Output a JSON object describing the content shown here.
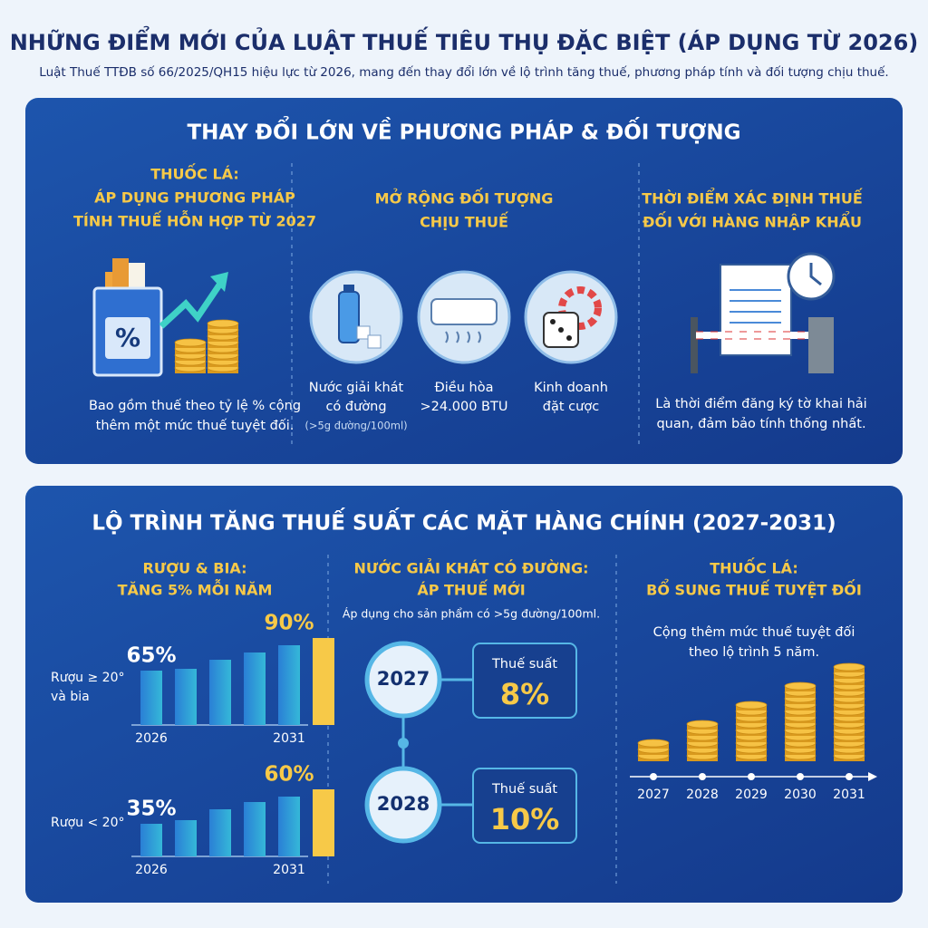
{
  "header": {
    "title": "NHỮNG ĐIỂM MỚI CỦA LUẬT THUẾ TIÊU THỤ ĐẶC BIỆT (ÁP DỤNG TỪ 2026)",
    "subtitle": "Luật Thuế TTĐB số 66/2025/QH15 hiệu lực từ 2026, mang đến thay đổi lớn về lộ trình tăng thuế, phương pháp tính và đối tượng chịu thuế."
  },
  "section1": {
    "title": "THAY ĐỔI LỚN VỀ PHƯƠNG PHÁP & ĐỐI TƯỢNG",
    "columns": [
      {
        "heading": [
          "THUỐC LÁ:",
          "ÁP DỤNG PHƯƠNG PHÁP",
          "TÍNH THUẾ HỖN HỢP TỪ 2027"
        ],
        "description": [
          "Bao gồm thuế theo tỷ lệ % cộng",
          "thêm một mức thuế tuyệt đối."
        ]
      },
      {
        "heading": [
          "MỞ RỘNG ĐỐI TƯỢNG",
          "CHỊU THUẾ"
        ],
        "items": [
          {
            "label": [
              "Nước giải khát",
              "có đường"
            ],
            "note": "(>5g đường/100ml)"
          },
          {
            "label": [
              "Điều hòa",
              ">24.000 BTU"
            ]
          },
          {
            "label": [
              "Kinh doanh",
              "đặt cược"
            ]
          }
        ]
      },
      {
        "heading": [
          "THỜI ĐIỂM XÁC ĐỊNH THUẾ",
          "ĐỐI VỚI HÀNG NHẬP KHẨU"
        ],
        "description": [
          "Là thời điểm đăng ký tờ khai hải",
          "quan, đảm bảo tính thống nhất."
        ]
      }
    ]
  },
  "section2": {
    "title": "LỘ TRÌNH TĂNG THUẾ SUẤT CÁC MẶT HÀNG CHÍNH (2027-2031)",
    "alcohol": {
      "heading": [
        "RƯỢU & BIA:",
        "TĂNG 5% MỖI NĂM"
      ],
      "rows": [
        {
          "label": [
            "Rượu ≥ 20°",
            "và bia"
          ],
          "start": "65%",
          "end": "90%",
          "start_year": "2026",
          "end_year": "2031"
        },
        {
          "label": [
            "Rượu < 20°"
          ],
          "start": "35%",
          "end": "60%",
          "start_year": "2026",
          "end_year": "2031"
        }
      ]
    },
    "sugary": {
      "heading": [
        "NƯỚC GIẢI KHÁT CÓ ĐƯỜNG:",
        "ÁP THUẾ MỚI"
      ],
      "note": "Áp dụng cho sản phẩm có >5g đường/100ml.",
      "steps": [
        {
          "year": "2027",
          "label": "Thuế suất",
          "rate": "8%"
        },
        {
          "year": "2028",
          "label": "Thuế suất",
          "rate": "10%"
        }
      ]
    },
    "tobacco": {
      "heading": [
        "THUỐC LÁ:",
        "BỔ SUNG THUẾ TUYỆT ĐỐI"
      ],
      "description": [
        "Cộng thêm mức thuế tuyệt đối",
        "theo lộ trình 5 năm."
      ],
      "years": [
        "2027",
        "2028",
        "2029",
        "2030",
        "2031"
      ]
    }
  }
}
